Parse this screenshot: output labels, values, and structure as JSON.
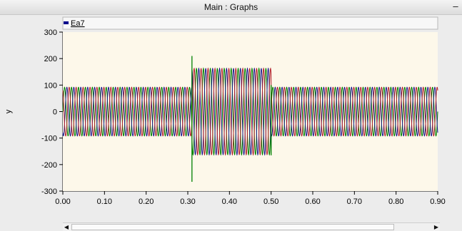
{
  "window": {
    "title": "Main : Graphs",
    "minimize": "–"
  },
  "colors": {
    "plot_bg": "#fdf8ea",
    "legend_marker": "#00008b",
    "phase_a": "#008000",
    "phase_b": "#1a1a8c",
    "phase_c": "#b0202c"
  },
  "chart_data": {
    "type": "line",
    "legend": [
      "Ea7"
    ],
    "ylabel": "y",
    "xlabel": "",
    "xlim": [
      0.0,
      0.9
    ],
    "ylim": [
      -300,
      300
    ],
    "xticks": [
      "0.00",
      "0.10",
      "0.20",
      "0.30",
      "0.40",
      "0.50",
      "0.60",
      "0.70",
      "0.80",
      "0.90"
    ],
    "yticks": [
      "300",
      "200",
      "100",
      "0",
      "-100",
      "-200",
      "-300"
    ],
    "grid": false,
    "series": [
      {
        "phase_deg": 0,
        "color": "#008000"
      },
      {
        "phase_deg": -120,
        "color": "#1a1a8c"
      },
      {
        "phase_deg": 120,
        "color": "#b0202c"
      }
    ],
    "waveform": {
      "frequency_hz": 60,
      "segments": [
        {
          "t_start": 0.0,
          "t_end": 0.31,
          "amplitude": 92
        },
        {
          "t_start": 0.31,
          "t_end": 0.5,
          "amplitude": 163
        },
        {
          "t_start": 0.5,
          "t_end": 0.9,
          "amplitude": 92
        }
      ],
      "transients": [
        {
          "t": 0.31,
          "min": -265,
          "max": 210
        },
        {
          "t": 0.5,
          "min": -165,
          "max": 100
        }
      ]
    }
  },
  "scrollbar": {
    "left_arrow": "◀",
    "right_arrow": "▶"
  }
}
